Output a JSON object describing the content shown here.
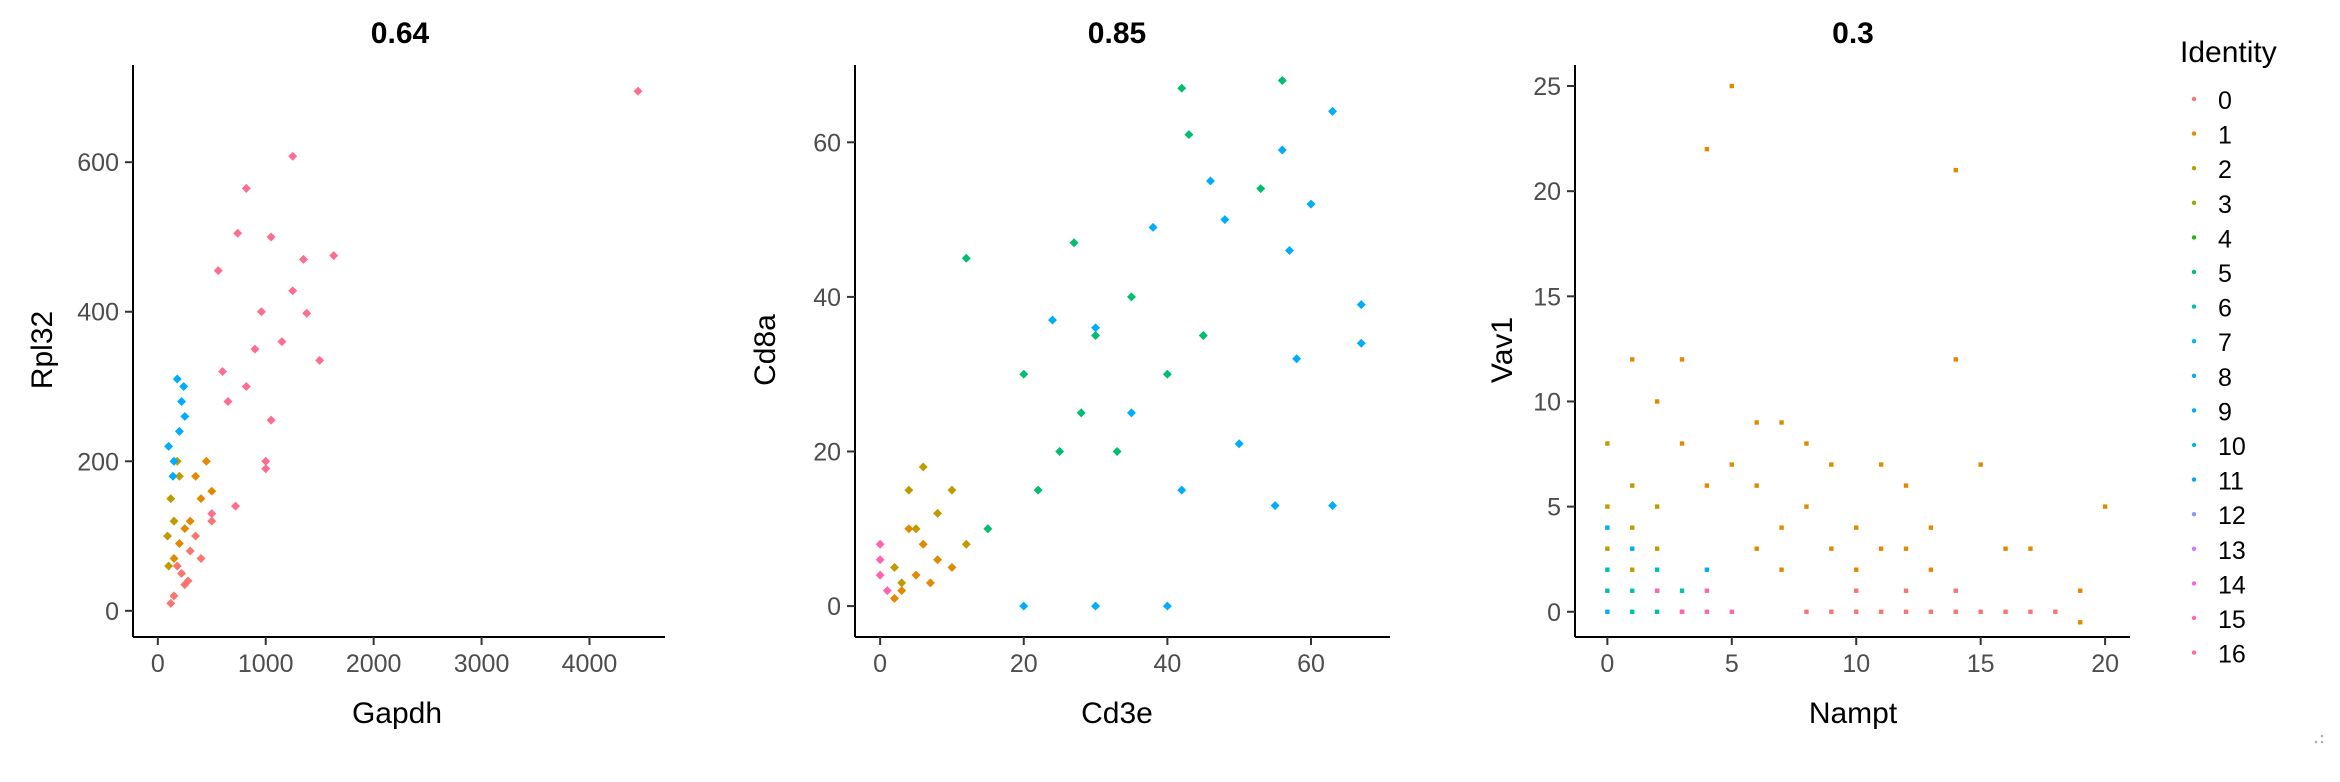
{
  "legend": {
    "title": "Identity",
    "items": [
      "0",
      "1",
      "2",
      "3",
      "4",
      "5",
      "6",
      "7",
      "8",
      "9",
      "10",
      "11",
      "12",
      "13",
      "14",
      "15",
      "16"
    ],
    "colors": [
      "#F8766D",
      "#E18A00",
      "#BE9C00",
      "#8CAB00",
      "#24B700",
      "#00BE70",
      "#00C1AB",
      "#00BBDA",
      "#00ACFC",
      "#00A5FF",
      "#00B8E7",
      "#00A6FF",
      "#8B93FF",
      "#D575FE",
      "#F962DD",
      "#FF65AC",
      "#FF6C91"
    ]
  },
  "chart_data": [
    {
      "type": "scatter",
      "title": "0.64",
      "xlabel": "Gapdh",
      "ylabel": "Rpl32",
      "xlim": [
        -230,
        4700
      ],
      "ylim": [
        -35,
        730
      ],
      "xticks": [
        0,
        1000,
        2000,
        3000,
        4000
      ],
      "yticks": [
        0,
        200,
        400,
        600
      ],
      "series": [
        {
          "identity": "0",
          "color": "#F8766D",
          "points": [
            [
              150,
              20
            ],
            [
              250,
              35
            ],
            [
              180,
              60
            ],
            [
              300,
              80
            ],
            [
              120,
              10
            ],
            [
              220,
              50
            ],
            [
              350,
              100
            ],
            [
              280,
              40
            ],
            [
              400,
              70
            ],
            [
              500,
              120
            ]
          ]
        },
        {
          "identity": "1",
          "color": "#E18A00",
          "points": [
            [
              200,
              90
            ],
            [
              300,
              120
            ],
            [
              400,
              150
            ],
            [
              250,
              110
            ],
            [
              350,
              180
            ],
            [
              500,
              160
            ],
            [
              150,
              70
            ],
            [
              450,
              200
            ]
          ]
        },
        {
          "identity": "2",
          "color": "#BE9C00",
          "points": [
            [
              100,
              60
            ],
            [
              150,
              120
            ],
            [
              200,
              180
            ],
            [
              120,
              150
            ],
            [
              180,
              200
            ],
            [
              90,
              100
            ]
          ]
        },
        {
          "identity": "8",
          "color": "#00ACFC",
          "points": [
            [
              150,
              200
            ],
            [
              200,
              240
            ],
            [
              250,
              260
            ],
            [
              180,
              310
            ],
            [
              100,
              220
            ],
            [
              220,
              280
            ],
            [
              140,
              180
            ],
            [
              240,
              300
            ]
          ]
        },
        {
          "identity": "16",
          "color": "#FF6C91",
          "points": [
            [
              4450,
              695
            ],
            [
              1250,
              608
            ],
            [
              820,
              565
            ],
            [
              1050,
              500
            ],
            [
              740,
              505
            ],
            [
              1630,
              475
            ],
            [
              1250,
              428
            ],
            [
              960,
              400
            ],
            [
              1380,
              398
            ],
            [
              900,
              350
            ],
            [
              1500,
              335
            ],
            [
              600,
              320
            ],
            [
              1050,
              255
            ],
            [
              1000,
              200
            ],
            [
              720,
              140
            ],
            [
              500,
              130
            ],
            [
              1350,
              470
            ],
            [
              560,
              455
            ],
            [
              1150,
              360
            ],
            [
              1000,
              190
            ],
            [
              820,
              300
            ],
            [
              650,
              280
            ]
          ]
        }
      ]
    },
    {
      "type": "scatter",
      "title": "0.85",
      "xlabel": "Cd3e",
      "ylabel": "Cd8a",
      "xlim": [
        -3.5,
        71
      ],
      "ylim": [
        -4,
        70
      ],
      "xticks": [
        0,
        20,
        40,
        60
      ],
      "yticks": [
        0,
        20,
        40,
        60
      ],
      "series": [
        {
          "identity": "1",
          "color": "#E18A00",
          "points": [
            [
              3,
              2
            ],
            [
              5,
              4
            ],
            [
              8,
              6
            ],
            [
              2,
              1
            ],
            [
              6,
              8
            ],
            [
              10,
              5
            ],
            [
              4,
              10
            ],
            [
              7,
              3
            ]
          ]
        },
        {
          "identity": "2",
          "color": "#BE9C00",
          "points": [
            [
              2,
              5
            ],
            [
              5,
              10
            ],
            [
              8,
              12
            ],
            [
              4,
              15
            ],
            [
              10,
              15
            ],
            [
              12,
              8
            ],
            [
              6,
              18
            ],
            [
              3,
              3
            ]
          ]
        },
        {
          "identity": "5",
          "color": "#00BE70",
          "points": [
            [
              42,
              67
            ],
            [
              56,
              68
            ],
            [
              43,
              61
            ],
            [
              53,
              54
            ],
            [
              20,
              30
            ],
            [
              25,
              20
            ],
            [
              30,
              35
            ],
            [
              35,
              40
            ],
            [
              15,
              10
            ],
            [
              28,
              25
            ],
            [
              40,
              30
            ],
            [
              22,
              15
            ],
            [
              33,
              20
            ],
            [
              45,
              35
            ],
            [
              12,
              45
            ],
            [
              27,
              47
            ]
          ]
        },
        {
          "identity": "8",
          "color": "#00ACFC",
          "points": [
            [
              63,
              64
            ],
            [
              56,
              59
            ],
            [
              46,
              55
            ],
            [
              60,
              52
            ],
            [
              67,
              39
            ],
            [
              57,
              46
            ],
            [
              48,
              50
            ],
            [
              38,
              49
            ],
            [
              30,
              36
            ],
            [
              24,
              37
            ],
            [
              35,
              25
            ],
            [
              50,
              21
            ],
            [
              42,
              15
            ],
            [
              20,
              0
            ],
            [
              30,
              0
            ],
            [
              40,
              0
            ],
            [
              55,
              13
            ],
            [
              63,
              13
            ],
            [
              67,
              34
            ],
            [
              58,
              32
            ]
          ]
        },
        {
          "identity": "15",
          "color": "#FF65AC",
          "points": [
            [
              0,
              8
            ],
            [
              0,
              4
            ],
            [
              1,
              2
            ],
            [
              0,
              6
            ]
          ]
        }
      ]
    },
    {
      "type": "scatter",
      "title": "0.3",
      "xlabel": "Nampt",
      "ylabel": "Vav1",
      "xlim": [
        -1.3,
        21
      ],
      "ylim": [
        -1.2,
        26
      ],
      "xticks": [
        0,
        5,
        10,
        15,
        20
      ],
      "yticks": [
        0,
        5,
        10,
        15,
        20,
        25
      ],
      "series": [
        {
          "identity": "0",
          "color": "#F8766D",
          "points": [
            [
              10,
              0
            ],
            [
              12,
              0
            ],
            [
              14,
              0
            ],
            [
              15,
              0
            ],
            [
              16,
              0
            ],
            [
              17,
              0
            ],
            [
              18,
              0
            ],
            [
              8,
              0
            ],
            [
              9,
              0
            ],
            [
              11,
              0
            ],
            [
              13,
              0
            ],
            [
              12,
              1
            ],
            [
              10,
              1
            ],
            [
              14,
              1
            ]
          ]
        },
        {
          "identity": "1",
          "color": "#E18A00",
          "points": [
            [
              5,
              25
            ],
            [
              4,
              22
            ],
            [
              14,
              21
            ],
            [
              14,
              12
            ],
            [
              15,
              7
            ],
            [
              20,
              5
            ],
            [
              19,
              1
            ],
            [
              19,
              -0.5
            ],
            [
              6,
              9
            ],
            [
              7,
              9
            ],
            [
              8,
              8
            ],
            [
              9,
              7
            ],
            [
              11,
              7
            ],
            [
              12,
              6
            ],
            [
              13,
              4
            ],
            [
              5,
              7
            ],
            [
              3,
              8
            ],
            [
              2,
              10
            ],
            [
              1,
              12
            ],
            [
              3,
              12
            ],
            [
              6,
              6
            ],
            [
              4,
              6
            ],
            [
              8,
              5
            ],
            [
              10,
              4
            ],
            [
              11,
              3
            ],
            [
              12,
              3
            ],
            [
              13,
              2
            ],
            [
              16,
              3
            ],
            [
              17,
              3
            ],
            [
              9,
              3
            ],
            [
              7,
              4
            ],
            [
              7,
              2
            ],
            [
              6,
              3
            ],
            [
              10,
              2
            ]
          ]
        },
        {
          "identity": "2",
          "color": "#BE9C00",
          "points": [
            [
              0,
              8
            ],
            [
              1,
              6
            ],
            [
              0,
              5
            ],
            [
              1,
              4
            ],
            [
              2,
              5
            ],
            [
              1,
              2
            ],
            [
              0,
              3
            ],
            [
              2,
              3
            ]
          ]
        },
        {
          "identity": "6",
          "color": "#00C1AB",
          "points": [
            [
              0,
              1
            ],
            [
              1,
              1
            ],
            [
              0,
              2
            ],
            [
              2,
              0
            ],
            [
              1,
              0
            ],
            [
              3,
              1
            ],
            [
              2,
              2
            ]
          ]
        },
        {
          "identity": "8",
          "color": "#00ACFC",
          "points": [
            [
              0,
              4
            ],
            [
              1,
              3
            ],
            [
              2,
              1
            ],
            [
              3,
              0
            ],
            [
              4,
              2
            ],
            [
              0,
              0
            ]
          ]
        },
        {
          "identity": "15",
          "color": "#FF65AC",
          "points": [
            [
              3,
              0
            ],
            [
              4,
              1
            ],
            [
              5,
              0
            ],
            [
              2,
              1
            ],
            [
              4,
              0
            ]
          ]
        }
      ]
    }
  ]
}
